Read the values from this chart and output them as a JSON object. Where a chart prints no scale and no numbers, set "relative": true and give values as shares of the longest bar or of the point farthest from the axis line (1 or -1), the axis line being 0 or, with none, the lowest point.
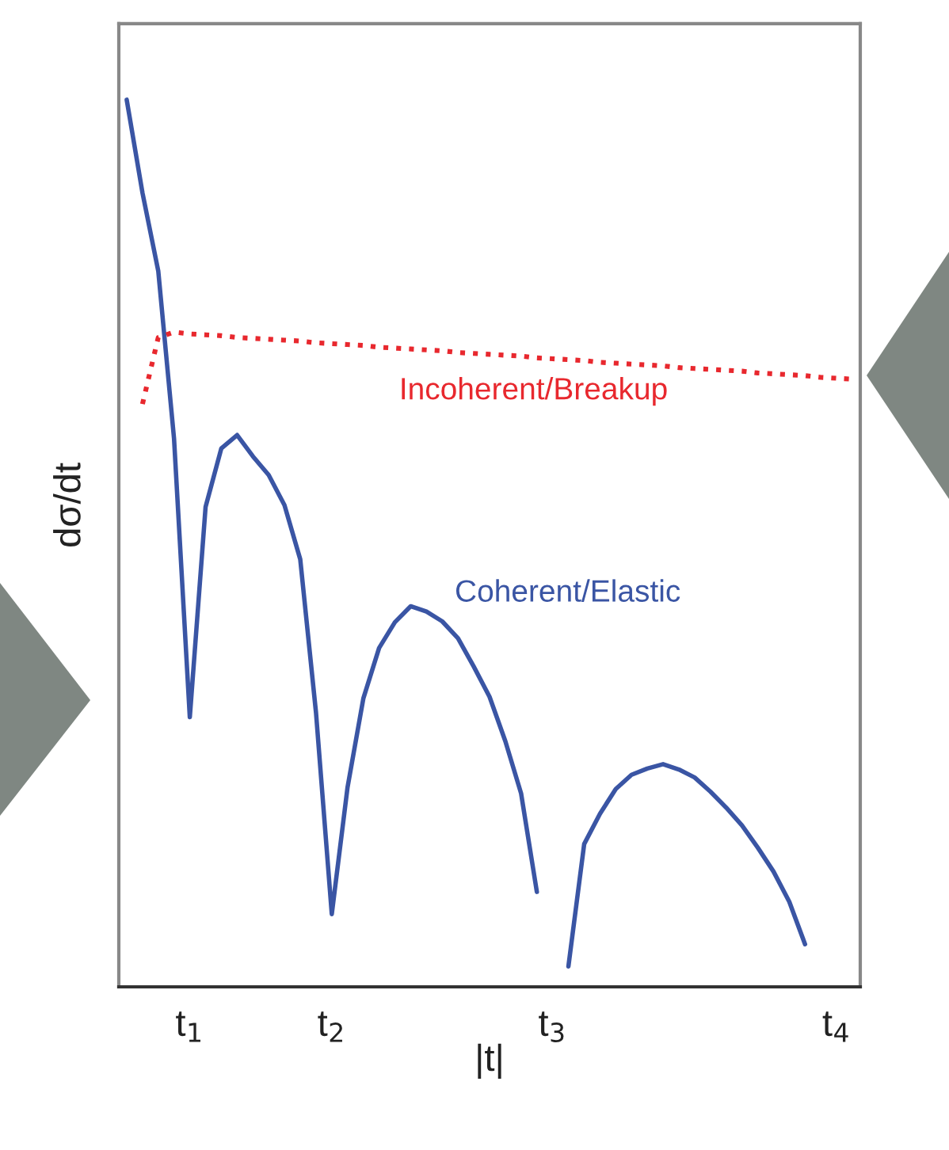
{
  "chart_data": {
    "type": "line",
    "xlabel": "|t|",
    "ylabel": "dσ/dt",
    "relative": true,
    "categories": [
      null,
      null,
      null,
      null,
      "t$_{1}$",
      null,
      null,
      null,
      null,
      null,
      null,
      null,
      null,
      "t$_{2}$",
      null,
      null,
      null,
      null,
      null,
      null,
      null,
      null,
      null,
      null,
      null,
      null,
      null,
      "t$_{3}$",
      null,
      null,
      null,
      null,
      null,
      null,
      null,
      null,
      null,
      null,
      null,
      null,
      null,
      null,
      null,
      null,
      null,
      "t$_{4}$",
      null
    ],
    "grid": false,
    "legend": false,
    "series": [
      {
        "name": "Coherent/Elastic",
        "color": "#3a55a4",
        "line_style": "solid",
        "values": [
          1,
          0.895,
          0.807,
          0.618,
          0.304,
          0.541,
          0.607,
          0.622,
          0.598,
          0.577,
          0.543,
          0.482,
          0.309,
          0.082,
          0.225,
          0.325,
          0.382,
          0.411,
          0.429,
          0.423,
          0.412,
          0.393,
          0.361,
          0.327,
          0.277,
          0.218,
          0.107,
          null,
          0.023,
          0.161,
          0.195,
          0.223,
          0.239,
          0.246,
          0.251,
          0.245,
          0.236,
          0.22,
          0.202,
          0.182,
          0.157,
          0.13,
          0.096,
          0.048,
          null,
          null,
          null
        ]
      },
      {
        "name": "Incoherent/Breakup",
        "color": "#e8282e",
        "line_style": "dotted",
        "values": [
          null,
          0.657,
          0.732,
          0.738,
          0.736,
          0.735,
          0.734,
          0.732,
          0.731,
          0.73,
          0.729,
          0.728,
          0.726,
          0.725,
          0.724,
          0.723,
          0.721,
          0.72,
          0.719,
          0.718,
          0.717,
          0.715,
          0.714,
          0.713,
          0.712,
          0.711,
          0.709,
          0.708,
          0.707,
          0.706,
          0.704,
          0.703,
          0.702,
          0.701,
          0.7,
          0.698,
          0.697,
          0.696,
          0.695,
          0.694,
          0.692,
          0.691,
          0.69,
          0.689,
          0.687,
          0.686,
          0.685
        ]
      }
    ]
  }
}
